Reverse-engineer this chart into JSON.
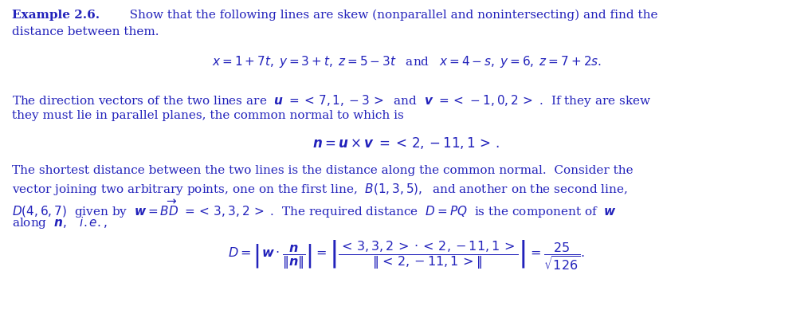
{
  "background_color": "#ffffff",
  "text_color": "#2222bb",
  "fig_width": 10.2,
  "fig_height": 3.99,
  "dpi": 100
}
